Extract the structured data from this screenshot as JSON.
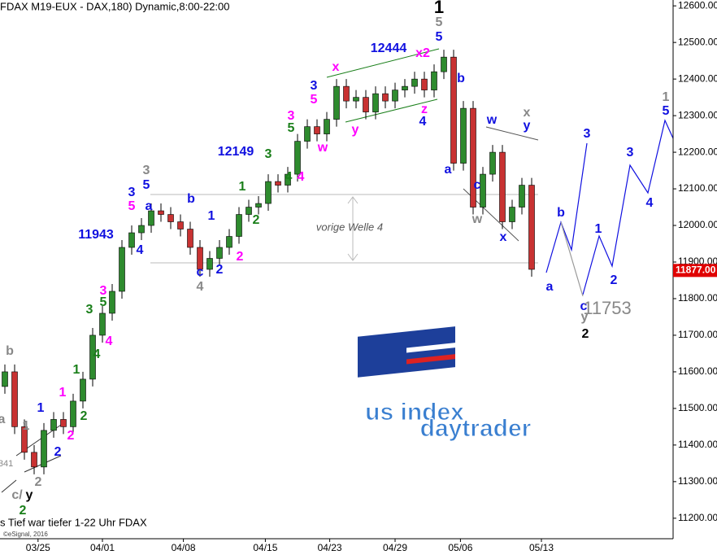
{
  "chart_data": {
    "type": "candlestick",
    "title": "FDAX M19-EUX - DAX,180) Dynamic,8:00-22:00",
    "footer": "s Tief war tiefer 1-22 Uhr FDAX",
    "copyright": "©eSignal, 2016",
    "logo": [
      "us index",
      "daytrader"
    ],
    "zone_label": "vorige Welle 4",
    "up_color": "#2e8b2e",
    "down_color": "#c83232",
    "open": [
      11560,
      11600,
      11450,
      11380,
      11340,
      11440,
      11470,
      11450,
      11520,
      11580,
      11700,
      11760,
      11820,
      11940,
      11980,
      12000,
      12040,
      12030,
      12010,
      11990,
      11940,
      11880,
      11910,
      11940,
      11970,
      12030,
      12050,
      12060,
      12120,
      12110,
      12140,
      12230,
      12270,
      12250,
      12290,
      12380,
      12340,
      12350,
      12310,
      12360,
      12340,
      12370,
      12380,
      12400,
      12370,
      12420,
      12460,
      12170,
      12320,
      12050,
      12140,
      12200,
      12010,
      12050,
      12110
    ],
    "high": [
      11620,
      11620,
      11470,
      11400,
      11460,
      11490,
      11490,
      11540,
      11600,
      11720,
      11780,
      11840,
      11960,
      12000,
      12020,
      12060,
      12060,
      12050,
      12030,
      12010,
      11960,
      11930,
      11960,
      11990,
      12050,
      12070,
      12080,
      12140,
      12140,
      12160,
      12250,
      12290,
      12290,
      12310,
      12400,
      12400,
      12370,
      12370,
      12380,
      12380,
      12390,
      12400,
      12420,
      12420,
      12440,
      12480,
      12480,
      12340,
      12340,
      12160,
      12220,
      12220,
      12070,
      12130,
      12130
    ],
    "low": [
      11540,
      11430,
      11360,
      11320,
      11320,
      11420,
      11430,
      11430,
      11500,
      11560,
      11680,
      11740,
      11800,
      11920,
      11960,
      11980,
      12010,
      11990,
      11970,
      11920,
      11860,
      11860,
      11890,
      11920,
      11950,
      12010,
      12030,
      12040,
      12090,
      12090,
      12120,
      12210,
      12230,
      12230,
      12270,
      12320,
      12320,
      12290,
      12290,
      12320,
      12320,
      12350,
      12360,
      12350,
      12350,
      12400,
      12150,
      12150,
      12030,
      12030,
      12120,
      11990,
      11990,
      12030,
      11860
    ],
    "close": [
      11600,
      11450,
      11380,
      11340,
      11440,
      11470,
      11450,
      11520,
      11580,
      11700,
      11760,
      11820,
      11940,
      11980,
      12000,
      12040,
      12030,
      12010,
      11990,
      11940,
      11880,
      11910,
      11940,
      11970,
      12030,
      12050,
      12060,
      12120,
      12110,
      12140,
      12230,
      12270,
      12250,
      12290,
      12380,
      12340,
      12350,
      12310,
      12360,
      12340,
      12370,
      12380,
      12400,
      12370,
      12420,
      12460,
      12170,
      12320,
      12050,
      12140,
      12200,
      12010,
      12050,
      12110,
      11880
    ],
    "xlim": [
      -0.5,
      68.5
    ],
    "xticks": [
      {
        "value": 3.4,
        "label": "03/25"
      },
      {
        "value": 10,
        "label": "04/01"
      },
      {
        "value": 18.3,
        "label": "04/08"
      },
      {
        "value": 26.7,
        "label": "04/15"
      },
      {
        "value": 33.3,
        "label": "04/23"
      },
      {
        "value": 40,
        "label": "04/29"
      },
      {
        "value": 46.7,
        "label": "05/06"
      },
      {
        "value": 55,
        "label": "05/13"
      }
    ],
    "ylim": [
      11144,
      12616
    ],
    "yticks": [
      {
        "value": 11200,
        "label": "11200.00"
      },
      {
        "value": 11300,
        "label": "11300.00"
      },
      {
        "value": 11400,
        "label": "11400.00"
      },
      {
        "value": 11500,
        "label": "11500.00"
      },
      {
        "value": 11600,
        "label": "11600.00"
      },
      {
        "value": 11700,
        "label": "11700.00"
      },
      {
        "value": 11800,
        "label": "11800.00"
      },
      {
        "value": 11900,
        "label": "11900.00"
      },
      {
        "value": 12000,
        "label": "12000.00"
      },
      {
        "value": 12100,
        "label": "12100.00"
      },
      {
        "value": 12200,
        "label": "12200.00"
      },
      {
        "value": 12300,
        "label": "12300.00"
      },
      {
        "value": 12400,
        "label": "12400.00"
      },
      {
        "value": 12500,
        "label": "12500.00"
      },
      {
        "value": 12600,
        "label": "12600.00"
      }
    ],
    "last_price": {
      "value": 11877,
      "label": "11877.00"
    },
    "annotations": [
      {
        "text": "1",
        "color": "#000000"
      },
      {
        "text": "5",
        "color": "#888888"
      },
      {
        "text": "5",
        "color": "#1010e0"
      },
      {
        "text": "12444",
        "color": "#1010e0"
      },
      {
        "text": "x2",
        "color": "#ff00ff"
      },
      {
        "text": "x",
        "color": "#ff00ff"
      },
      {
        "text": "y",
        "color": "#ff00ff"
      },
      {
        "text": "z",
        "color": "#ff00ff"
      },
      {
        "text": "4",
        "color": "#1010e0"
      },
      {
        "text": "3",
        "color": "#1010e0"
      },
      {
        "text": "5",
        "color": "#ff00ff"
      },
      {
        "text": "3",
        "color": "#ff00ff"
      },
      {
        "text": "5",
        "color": "#1a7f1a"
      },
      {
        "text": "w",
        "color": "#ff00ff"
      },
      {
        "text": "3",
        "color": "#1a7f1a"
      },
      {
        "text": "4",
        "color": "#1a7f1a"
      },
      {
        "text": "4",
        "color": "#ff00ff"
      },
      {
        "text": "12149",
        "color": "#1010e0"
      },
      {
        "text": "3",
        "color": "#888888"
      },
      {
        "text": "5",
        "color": "#1010e0"
      },
      {
        "text": "3",
        "color": "#1010e0"
      },
      {
        "text": "5",
        "color": "#ff00ff"
      },
      {
        "text": "a",
        "color": "#1010e0"
      },
      {
        "text": "4",
        "color": "#1010e0"
      },
      {
        "text": "11943",
        "color": "#1010e0"
      },
      {
        "text": "b",
        "color": "#1010e0"
      },
      {
        "text": "1",
        "color": "#1010e0"
      },
      {
        "text": "1",
        "color": "#1a7f1a"
      },
      {
        "text": "2",
        "color": "#1a7f1a"
      },
      {
        "text": "2",
        "color": "#ff00ff"
      },
      {
        "text": "2",
        "color": "#1010e0"
      },
      {
        "text": "c",
        "color": "#1010e0"
      },
      {
        "text": "4",
        "color": "#888888"
      },
      {
        "text": "3",
        "color": "#ff00ff"
      },
      {
        "text": "5",
        "color": "#1a7f1a"
      },
      {
        "text": "3",
        "color": "#1a7f1a"
      },
      {
        "text": "4",
        "color": "#ff00ff"
      },
      {
        "text": "4",
        "color": "#1a7f1a"
      },
      {
        "text": "1",
        "color": "#1a7f1a"
      },
      {
        "text": "1",
        "color": "#ff00ff"
      },
      {
        "text": "2",
        "color": "#1a7f1a"
      },
      {
        "text": "2",
        "color": "#ff00ff"
      },
      {
        "text": "1",
        "color": "#1010e0"
      },
      {
        "text": "2",
        "color": "#1010e0"
      },
      {
        "text": "1",
        "color": "#888888"
      },
      {
        "text": "2",
        "color": "#888888"
      },
      {
        "text": "b",
        "color": "#888888"
      },
      {
        "text": "a",
        "color": "#888888"
      },
      {
        "text": "341",
        "color": "#888888"
      },
      {
        "text": "c/",
        "color": "#888888"
      },
      {
        "text": "y",
        "color": "#000000"
      },
      {
        "text": "2",
        "color": "#1a7f1a"
      },
      {
        "text": "b",
        "color": "#1010e0"
      },
      {
        "text": "a",
        "color": "#1010e0"
      },
      {
        "text": "w",
        "color": "#1010e0"
      },
      {
        "text": "x",
        "color": "#888888"
      },
      {
        "text": "y",
        "color": "#1010e0"
      },
      {
        "text": "c",
        "color": "#1010e0"
      },
      {
        "text": "w",
        "color": "#888888"
      },
      {
        "text": "x",
        "color": "#1010e0"
      },
      {
        "text": "a",
        "color": "#1010e0"
      },
      {
        "text": "b",
        "color": "#1010e0"
      },
      {
        "text": "3",
        "color": "#1010e0"
      },
      {
        "text": "1",
        "color": "#1010e0"
      },
      {
        "text": "2",
        "color": "#1010e0"
      },
      {
        "text": "c",
        "color": "#1010e0"
      },
      {
        "text": "y",
        "color": "#888888"
      },
      {
        "text": "2",
        "color": "#000000"
      },
      {
        "text": "11753",
        "color": "#888888"
      },
      {
        "text": "3",
        "color": "#1010e0"
      },
      {
        "text": "4",
        "color": "#1010e0"
      },
      {
        "text": "1",
        "color": "#888888"
      },
      {
        "text": "5",
        "color": "#1010e0"
      }
    ]
  }
}
